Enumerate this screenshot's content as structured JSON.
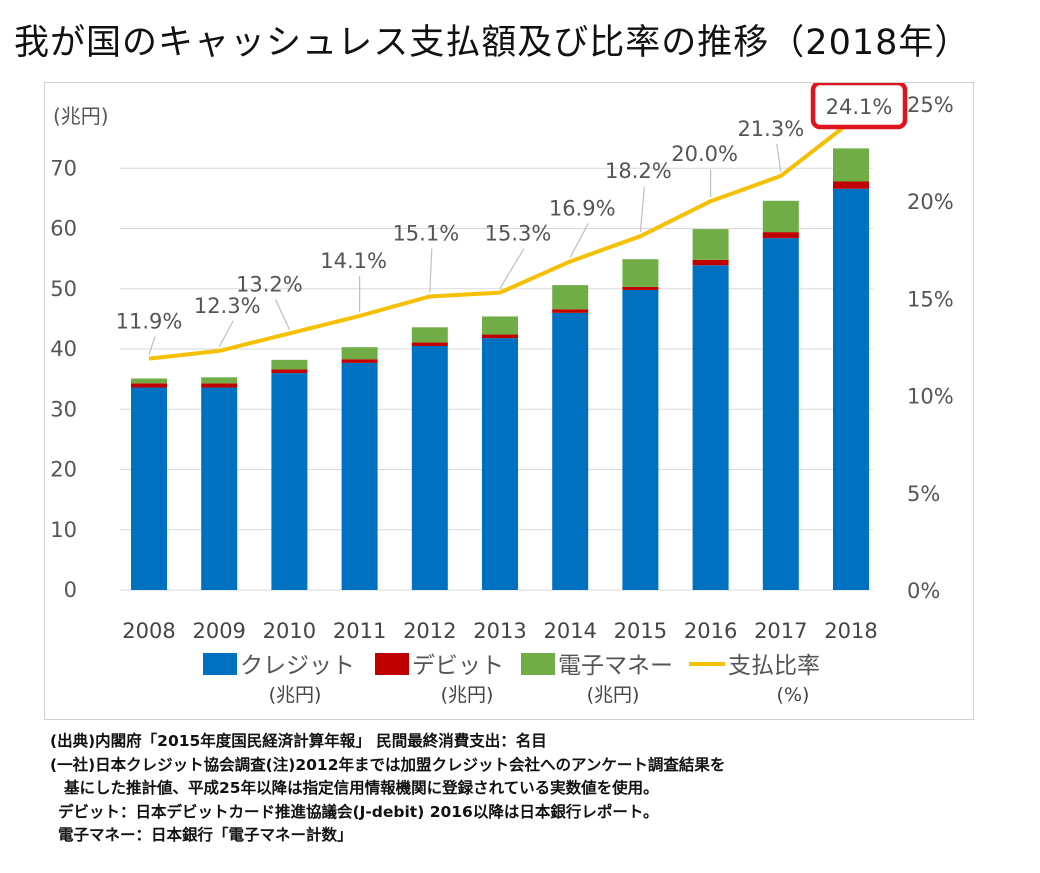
{
  "title": "我が国のキャッシュレス支払額及び比率の推移（2018年）",
  "chart_data": {
    "type": "bar",
    "stacked": true,
    "title": "我が国のキャッシュレス支払額及び比率の推移（2018年）",
    "categories": [
      "2008",
      "2009",
      "2010",
      "2011",
      "2012",
      "2013",
      "2014",
      "2015",
      "2016",
      "2017",
      "2018"
    ],
    "y_unit_label": "(兆円)",
    "ylim": [
      0,
      80
    ],
    "yticks": [
      0,
      10,
      20,
      30,
      40,
      50,
      60,
      70
    ],
    "y2lim": [
      0,
      25
    ],
    "y2ticks": [
      "0%",
      "5%",
      "10%",
      "15%",
      "20%",
      "25%"
    ],
    "y2tick_values": [
      0,
      5,
      10,
      15,
      20,
      25
    ],
    "grid": true,
    "series": [
      {
        "name": "クレジット",
        "unit": "(兆円)",
        "color": "#0070c0",
        "values": [
          33.6,
          33.6,
          36.0,
          37.7,
          40.5,
          41.8,
          46.0,
          49.8,
          53.9,
          58.4,
          66.6
        ]
      },
      {
        "name": "デビット",
        "unit": "(兆円)",
        "color": "#c00000",
        "values": [
          0.7,
          0.7,
          0.6,
          0.6,
          0.6,
          0.6,
          0.6,
          0.5,
          0.9,
          1.0,
          1.2
        ]
      },
      {
        "name": "電子マネー",
        "unit": "(兆円)",
        "color": "#70ad47",
        "values": [
          0.8,
          1.0,
          1.6,
          2.0,
          2.5,
          3.0,
          4.0,
          4.6,
          5.1,
          5.2,
          5.5
        ]
      }
    ],
    "line_series": {
      "name": "支払比率",
      "unit": "(%)",
      "color": "#f6c000",
      "values": [
        11.9,
        12.3,
        13.2,
        14.1,
        15.1,
        15.3,
        16.9,
        18.2,
        20.0,
        21.3,
        24.1
      ],
      "labels": [
        "11.9%",
        "12.3%",
        "13.2%",
        "14.1%",
        "15.1%",
        "15.3%",
        "16.9%",
        "18.2%",
        "20.0%",
        "21.3%",
        "24.1%"
      ]
    },
    "highlight": {
      "label": "24.1%",
      "color": "#e0141e"
    },
    "legend_position": "bottom"
  },
  "notes": [
    "(出典)内閣府「2015年度国民経済計算年報」 民間最終消費支出：名目",
    "(一社)日本クレジット協会調査(注)2012年までは加盟クレジット会社へのアンケート調査結果を",
    "基にした推計値、平成25年以降は指定信用情報機関に登録されている実数値を使用。",
    "デビット：日本デビットカード推進協議会(J-debit) 2016以降は日本銀行レポート。",
    "電子マネー：日本銀行「電子マネー計数」"
  ]
}
